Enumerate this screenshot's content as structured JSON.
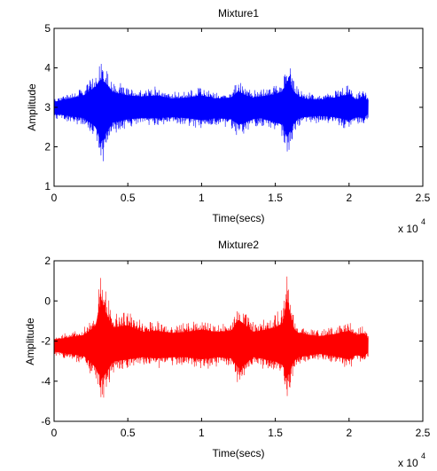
{
  "chart_data": [
    {
      "type": "line",
      "title": "Mixture1",
      "xlabel": "Time(secs)",
      "ylabel": "Amplitude",
      "x_multiplier": "x 10",
      "x_multiplier_exp": "4",
      "xlim": [
        0,
        25000
      ],
      "ylim": [
        1,
        5
      ],
      "x_ticks": [
        "0",
        "0.5",
        "1",
        "1.5",
        "2",
        "2.5"
      ],
      "y_ticks": [
        "1",
        "2",
        "3",
        "4",
        "5"
      ],
      "grid": false,
      "series": [
        {
          "color": "#0000ff",
          "x_range": [
            0,
            21300
          ],
          "baseline": 3.0,
          "envelope_x": [
            0,
            1000,
            2000,
            2800,
            3200,
            3600,
            4000,
            5000,
            6000,
            7000,
            8000,
            9000,
            10000,
            11000,
            12000,
            12500,
            13000,
            13500,
            14000,
            15000,
            15500,
            15800,
            16000,
            16300,
            16600,
            17000,
            18000,
            19000,
            20000,
            20500,
            21000,
            21300
          ],
          "envelope_upper": [
            3.25,
            3.4,
            3.55,
            3.95,
            4.3,
            4.05,
            3.7,
            3.55,
            3.5,
            3.55,
            3.4,
            3.45,
            3.55,
            3.4,
            3.45,
            3.75,
            3.55,
            3.45,
            3.5,
            3.6,
            3.75,
            4.25,
            4.1,
            3.7,
            3.5,
            3.4,
            3.35,
            3.45,
            3.6,
            3.35,
            3.5,
            3.3
          ],
          "envelope_lower": [
            2.7,
            2.6,
            2.5,
            2.1,
            1.4,
            1.9,
            2.3,
            2.45,
            2.5,
            2.5,
            2.55,
            2.5,
            2.4,
            2.5,
            2.45,
            2.2,
            2.3,
            2.45,
            2.5,
            2.3,
            2.2,
            1.6,
            1.9,
            2.3,
            2.5,
            2.55,
            2.6,
            2.55,
            2.4,
            2.55,
            2.5,
            2.7
          ]
        }
      ]
    },
    {
      "type": "line",
      "title": "Mixture2",
      "xlabel": "Time(secs)",
      "ylabel": "Amplitude",
      "x_multiplier": "x 10",
      "x_multiplier_exp": "4",
      "xlim": [
        0,
        25000
      ],
      "ylim": [
        -6,
        2
      ],
      "x_ticks": [
        "0",
        "0.5",
        "1",
        "1.5",
        "2",
        "2.5"
      ],
      "y_ticks": [
        "-6",
        "-4",
        "-2",
        "0",
        "2"
      ],
      "grid": false,
      "series": [
        {
          "color": "#ff0000",
          "x_range": [
            0,
            21300
          ],
          "baseline": -2.2,
          "envelope_x": [
            0,
            1000,
            2000,
            2800,
            3200,
            3600,
            4000,
            5000,
            6000,
            7000,
            8000,
            9000,
            10000,
            11000,
            12000,
            12500,
            13000,
            13500,
            14000,
            15000,
            15500,
            15800,
            16000,
            16300,
            16600,
            17000,
            18000,
            19000,
            20000,
            20500,
            21000,
            21300
          ],
          "envelope_upper": [
            -1.7,
            -1.5,
            -1.3,
            -0.5,
            2.0,
            0.5,
            -0.6,
            -0.4,
            -1.0,
            -0.9,
            -1.1,
            -1.0,
            -0.8,
            -1.0,
            -0.9,
            0.1,
            -0.4,
            -1.0,
            -0.9,
            -0.6,
            -0.2,
            1.8,
            0.8,
            -0.8,
            -1.1,
            -1.2,
            -1.4,
            -1.2,
            -0.9,
            -1.3,
            -1.1,
            -1.6
          ],
          "envelope_lower": [
            -2.8,
            -3.0,
            -3.2,
            -4.2,
            -5.3,
            -4.6,
            -3.7,
            -3.5,
            -3.3,
            -3.4,
            -3.3,
            -3.3,
            -3.5,
            -3.3,
            -3.4,
            -4.3,
            -3.9,
            -3.3,
            -3.4,
            -3.7,
            -4.0,
            -5.1,
            -4.5,
            -3.6,
            -3.3,
            -3.2,
            -3.0,
            -3.2,
            -3.5,
            -3.1,
            -3.3,
            -2.8
          ]
        }
      ]
    }
  ]
}
